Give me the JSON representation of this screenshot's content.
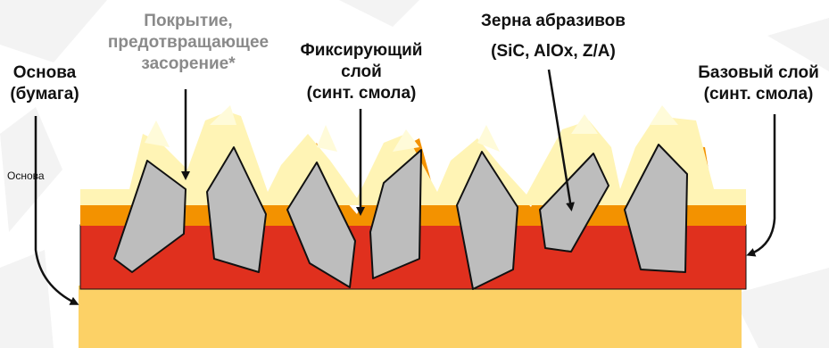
{
  "labels": {
    "coating": {
      "line1": "Покрытие,",
      "line2": "предотвращающее",
      "line3": "засорение*"
    },
    "base": {
      "line1": "Основа",
      "line2": "(бумага)"
    },
    "fixing": {
      "line1": "Фиксирующий",
      "line2": "слой",
      "line3": "(синт. смола)"
    },
    "grains": {
      "line1": "Зерна абразивов",
      "line2": "(SiC, AlOx, Z/A)"
    },
    "base_layer": {
      "line1": "Базовый слой",
      "line2": "(синт. смола)"
    },
    "small_base": "Основа"
  },
  "colors": {
    "paper": "#FCD166",
    "base_resin": "#E0301E",
    "fixing_resin": "#F39200",
    "coating": "#FFF4B5",
    "grain": "#BDBDBD",
    "outline": "#111111",
    "label_grey": "#8A8A8A"
  }
}
